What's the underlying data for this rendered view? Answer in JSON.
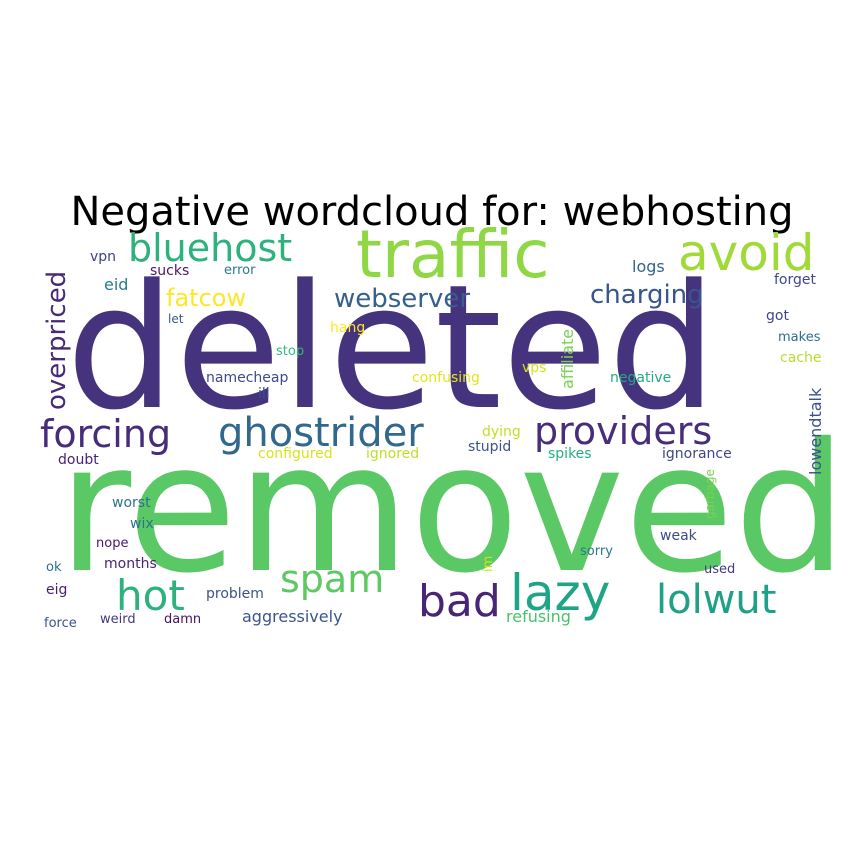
{
  "title": "Negative wordcloud for: webhosting",
  "palette": {
    "indigo": "#46337e",
    "purple": "#440154",
    "steel": "#365c8d",
    "teal": "#277f8e",
    "sea": "#1fa187",
    "green": "#4ac16d",
    "lime": "#a0da39",
    "yellow": "#fde725"
  },
  "words": [
    {
      "text": "removed",
      "color": "#5ac864"
    },
    {
      "text": "deleted",
      "color": "#46337e"
    },
    {
      "text": "traffic",
      "color": "#8fd744"
    },
    {
      "text": "avoid",
      "color": "#a0da39"
    },
    {
      "text": "bluehost",
      "color": "#2db27d"
    },
    {
      "text": "providers",
      "color": "#472d7b"
    },
    {
      "text": "ghostrider",
      "color": "#31688e"
    },
    {
      "text": "forcing",
      "color": "#472c7a"
    },
    {
      "text": "lazy",
      "color": "#20a486"
    },
    {
      "text": "lolwut",
      "color": "#1fa187"
    },
    {
      "text": "bad",
      "color": "#482576"
    },
    {
      "text": "spam",
      "color": "#5ec962"
    },
    {
      "text": "hot",
      "color": "#2db27d"
    },
    {
      "text": "webserver",
      "color": "#355f8d"
    },
    {
      "text": "charging",
      "color": "#39558c"
    },
    {
      "text": "fatcow",
      "color": "#fde725"
    },
    {
      "text": "overpriced",
      "color": "#482878"
    },
    {
      "text": "affiliate",
      "color": "#7ad151"
    },
    {
      "text": "lowendtalk",
      "color": "#3b518b"
    },
    {
      "text": "eid",
      "color": "#287c8e"
    },
    {
      "text": "vpn",
      "color": "#424086"
    },
    {
      "text": "sucks",
      "color": "#481769"
    },
    {
      "text": "error",
      "color": "#2a788e"
    },
    {
      "text": "logs",
      "color": "#32648e"
    },
    {
      "text": "forget",
      "color": "#3e4989"
    },
    {
      "text": "got",
      "color": "#3f4788"
    },
    {
      "text": "makes",
      "color": "#2e6e8e"
    },
    {
      "text": "cache",
      "color": "#b5de2b"
    },
    {
      "text": "let",
      "color": "#38588c"
    },
    {
      "text": "hang",
      "color": "#fde725"
    },
    {
      "text": "stop",
      "color": "#35b779"
    },
    {
      "text": "namecheap",
      "color": "#3e4a89"
    },
    {
      "text": "confusing",
      "color": "#e5e419"
    },
    {
      "text": "vps",
      "color": "#d8e219"
    },
    {
      "text": "negative",
      "color": "#22a884"
    },
    {
      "text": "ill",
      "color": "#3d4d8a"
    },
    {
      "text": "dying",
      "color": "#c2df23"
    },
    {
      "text": "stupid",
      "color": "#3b528b"
    },
    {
      "text": "configured",
      "color": "#d8e219"
    },
    {
      "text": "ignored",
      "color": "#bddf26"
    },
    {
      "text": "doubt",
      "color": "#482173"
    },
    {
      "text": "spikes",
      "color": "#26ad81"
    },
    {
      "text": "ignorance",
      "color": "#414487"
    },
    {
      "text": "garbage",
      "color": "#7ad151"
    },
    {
      "text": "worst",
      "color": "#2c728e"
    },
    {
      "text": "wix",
      "color": "#2c728e"
    },
    {
      "text": "nope",
      "color": "#481a6c"
    },
    {
      "text": "weak",
      "color": "#3e4a89"
    },
    {
      "text": "ok",
      "color": "#2c728e"
    },
    {
      "text": "months",
      "color": "#482475"
    },
    {
      "text": "im",
      "color": "#d0e11c"
    },
    {
      "text": "sorry",
      "color": "#2a788e"
    },
    {
      "text": "used",
      "color": "#453882"
    },
    {
      "text": "eig",
      "color": "#481d6f"
    },
    {
      "text": "problem",
      "color": "#3a548c"
    },
    {
      "text": "aggressively",
      "color": "#39568c"
    },
    {
      "text": "refusing",
      "color": "#4ac16d"
    },
    {
      "text": "force",
      "color": "#3b518b"
    },
    {
      "text": "weird",
      "color": "#453882"
    },
    {
      "text": "damn",
      "color": "#471164"
    }
  ]
}
